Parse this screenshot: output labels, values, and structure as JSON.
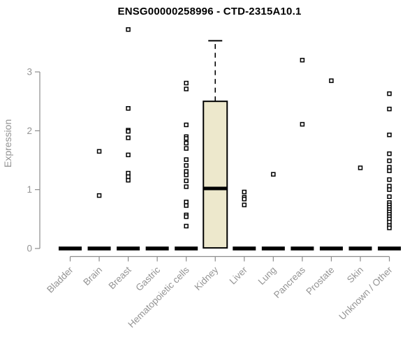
{
  "title": "ENSG00000258996 - CTD-2315A10.1",
  "chart_data": {
    "type": "boxplot",
    "title": "ENSG00000258996 - CTD-2315A10.1",
    "xlabel": "",
    "ylabel": "Expression",
    "ylim": [
      0,
      3.75
    ],
    "yticks": [
      0,
      1,
      2,
      3
    ],
    "grid": false,
    "legend": null,
    "categories": [
      "Bladder",
      "Brain",
      "Breast",
      "Gastric",
      "Hematopoietic cells",
      "Kidney",
      "Liver",
      "Lung",
      "Pancreas",
      "Prostate",
      "Skin",
      "Unknown / Other"
    ],
    "boxes": [
      {
        "category": "Bladder",
        "q1": 0,
        "median": 0,
        "q3": 0,
        "whisker_low": 0,
        "whisker_high": 0,
        "outliers": []
      },
      {
        "category": "Brain",
        "q1": 0,
        "median": 0,
        "q3": 0,
        "whisker_low": 0,
        "whisker_high": 0,
        "outliers": [
          1.65,
          0.9
        ]
      },
      {
        "category": "Breast",
        "q1": 0,
        "median": 0,
        "q3": 0,
        "whisker_low": 0,
        "whisker_high": 0,
        "outliers": [
          3.72,
          2.38,
          2.01,
          1.99,
          1.88,
          1.59,
          1.28,
          1.22,
          1.16
        ]
      },
      {
        "category": "Gastric",
        "q1": 0,
        "median": 0,
        "q3": 0,
        "whisker_low": 0,
        "whisker_high": 0,
        "outliers": []
      },
      {
        "category": "Hematopoietic cells",
        "q1": 0,
        "median": 0,
        "q3": 0,
        "whisker_low": 0,
        "whisker_high": 0,
        "outliers": [
          2.81,
          2.71,
          2.1,
          1.9,
          1.87,
          1.79,
          1.7,
          1.51,
          1.41,
          1.31,
          1.25,
          1.15,
          1.05,
          0.79,
          0.73,
          0.57,
          0.54,
          0.38
        ]
      },
      {
        "category": "Kidney",
        "q1": 0.01,
        "median": 1.02,
        "q3": 2.5,
        "whisker_low": 0.01,
        "whisker_high": 3.53,
        "outliers": []
      },
      {
        "category": "Liver",
        "q1": 0,
        "median": 0,
        "q3": 0,
        "whisker_low": 0,
        "whisker_high": 0,
        "outliers": [
          0.96,
          0.87,
          0.84,
          0.74
        ]
      },
      {
        "category": "Lung",
        "q1": 0,
        "median": 0,
        "q3": 0,
        "whisker_low": 0,
        "whisker_high": 0,
        "outliers": [
          1.26
        ]
      },
      {
        "category": "Pancreas",
        "q1": 0,
        "median": 0,
        "q3": 0,
        "whisker_low": 0,
        "whisker_high": 0,
        "outliers": [
          3.2,
          2.11
        ]
      },
      {
        "category": "Prostate",
        "q1": 0,
        "median": 0,
        "q3": 0,
        "whisker_low": 0,
        "whisker_high": 0,
        "outliers": [
          2.85
        ]
      },
      {
        "category": "Skin",
        "q1": 0,
        "median": 0,
        "q3": 0,
        "whisker_low": 0,
        "whisker_high": 0,
        "outliers": [
          1.37
        ]
      },
      {
        "category": "Unknown / Other",
        "q1": 0,
        "median": 0,
        "q3": 0,
        "whisker_low": 0,
        "whisker_high": 0,
        "outliers": [
          2.63,
          2.37,
          1.93,
          1.61,
          1.49,
          1.38,
          1.32,
          1.17,
          1.06,
          1.0,
          0.88,
          0.78,
          0.74,
          0.7,
          0.66,
          0.62,
          0.58,
          0.54,
          0.5,
          0.45,
          0.39,
          0.35
        ]
      }
    ],
    "colors": {
      "box_fill": "#ede8cc",
      "box_stroke": "#000000",
      "median": "#000000",
      "outlier_stroke": "#000000",
      "outlier_fill": "#ffffff",
      "axis": "#8c8c8c",
      "tick_label": "#949494",
      "title": "#000000"
    }
  }
}
